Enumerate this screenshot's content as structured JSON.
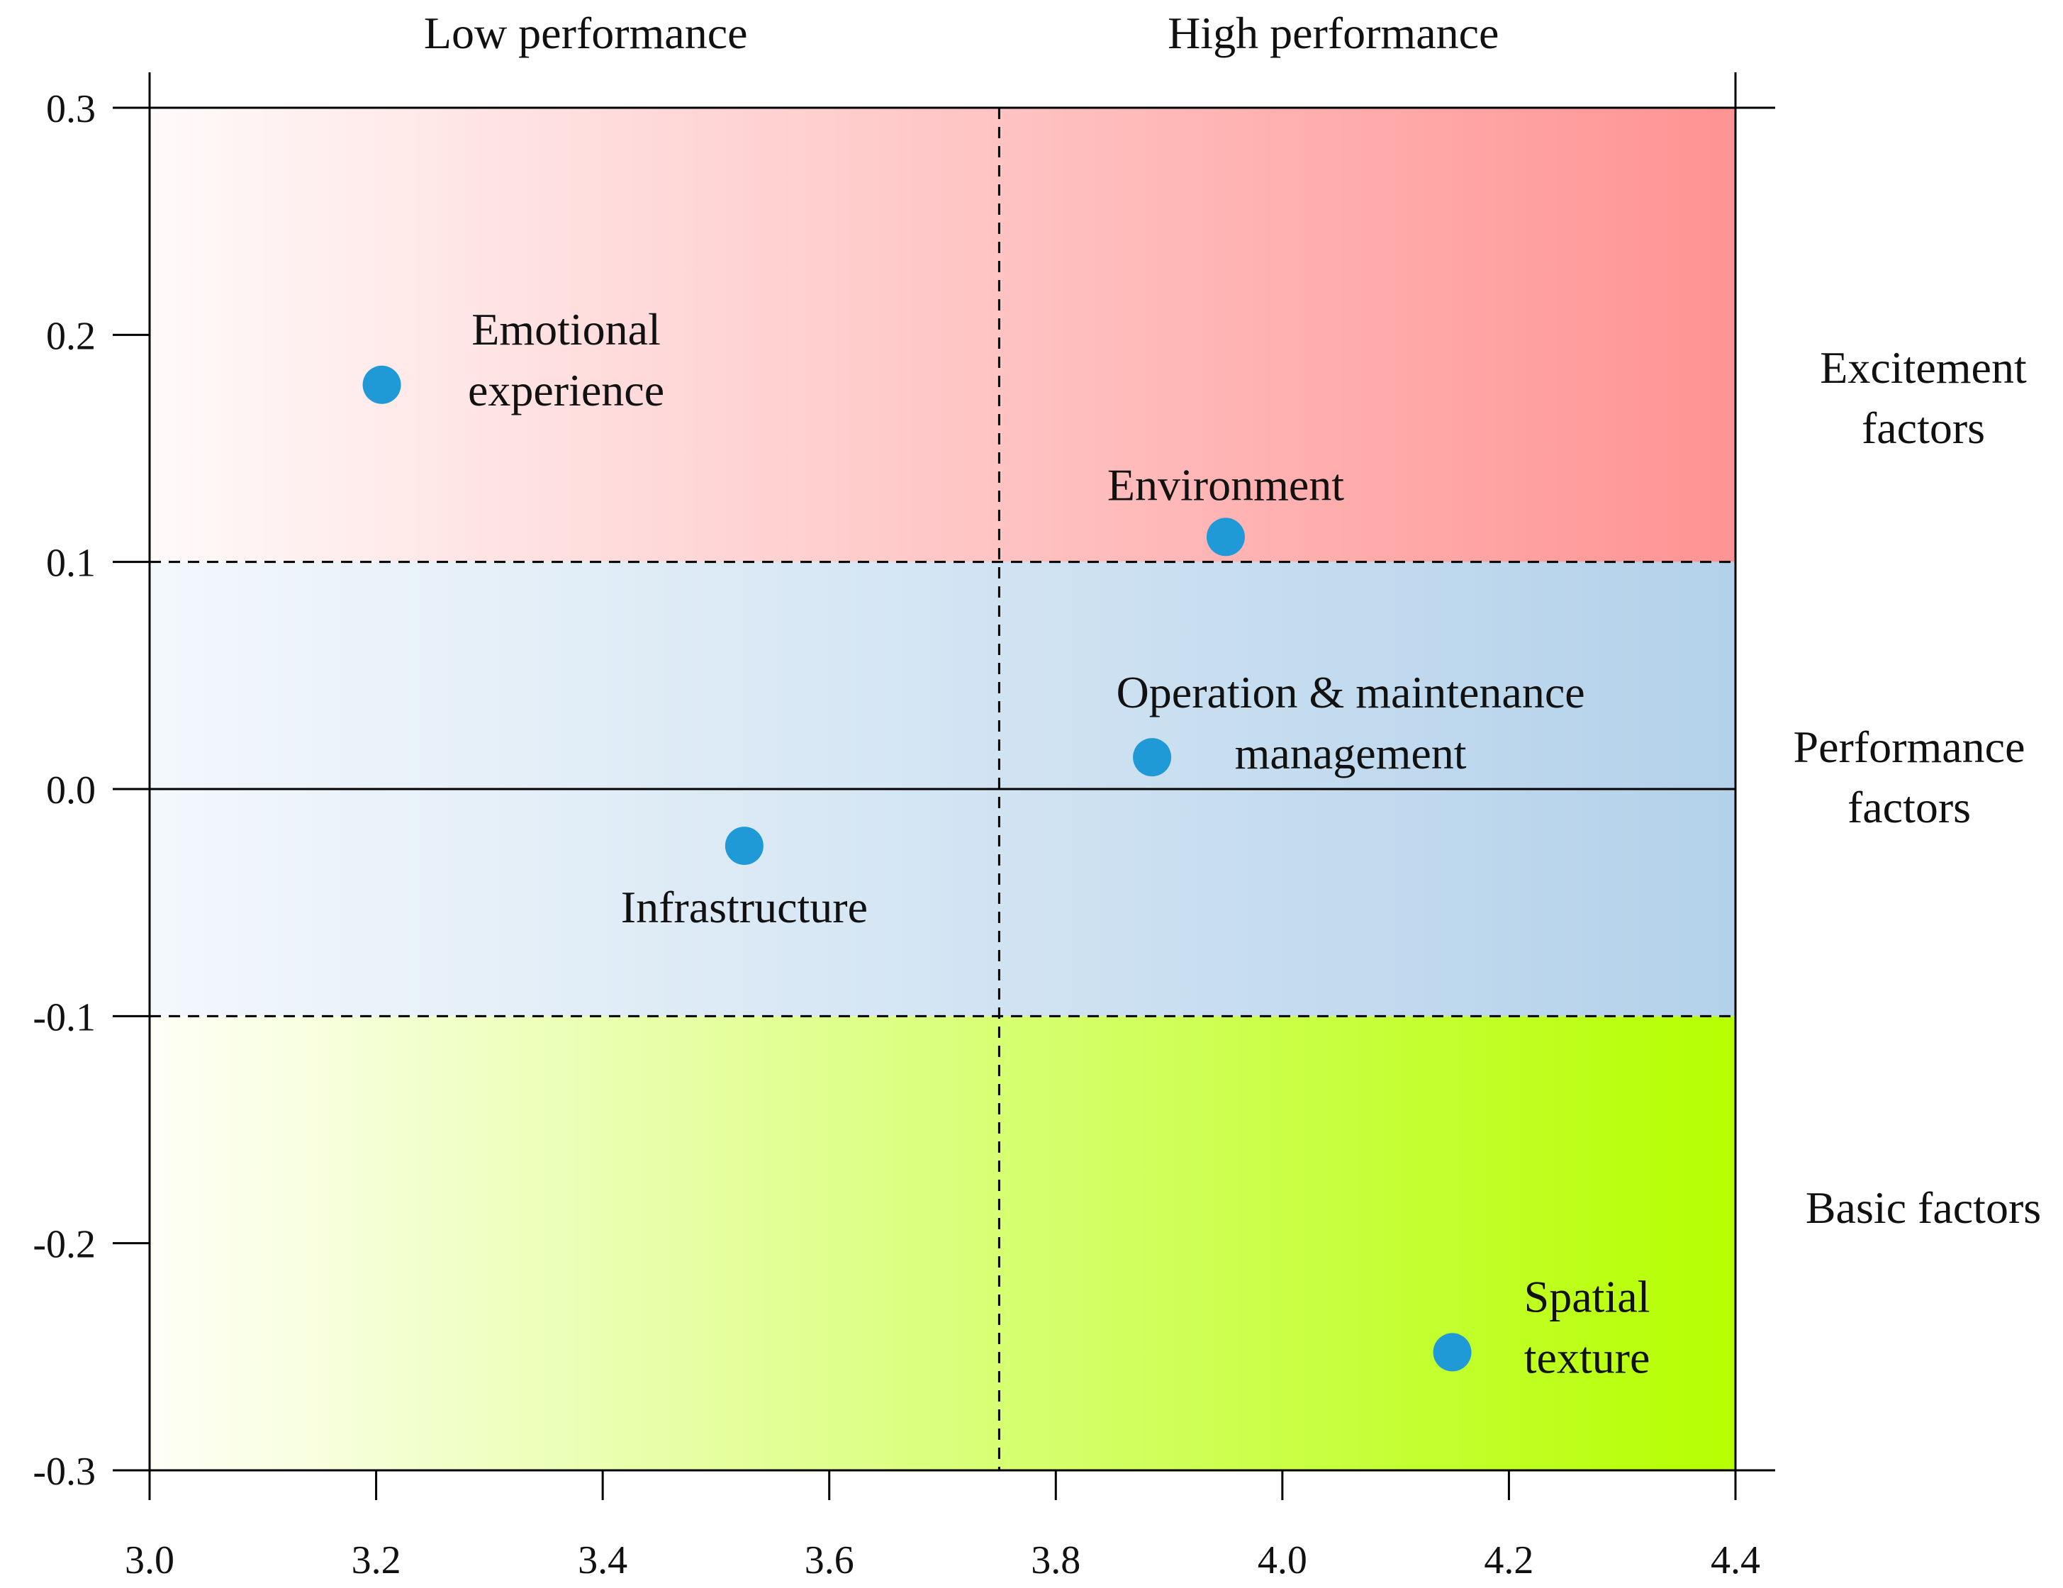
{
  "chart_data": {
    "type": "scatter",
    "title": "",
    "xlabel": "",
    "ylabel": "",
    "xlim": [
      3.0,
      4.4
    ],
    "ylim": [
      -0.3,
      0.3
    ],
    "x_ticks": [
      "3.0",
      "3.2",
      "3.4",
      "3.6",
      "3.8",
      "4.0",
      "4.2",
      "4.4"
    ],
    "y_ticks": [
      "0.3",
      "0.2",
      "0.1",
      "0.0",
      "-0.1",
      "-0.2",
      "-0.3"
    ],
    "x_ticks_values": [
      3.0,
      3.2,
      3.4,
      3.6,
      3.8,
      4.0,
      4.2,
      4.4
    ],
    "y_ticks_values": [
      0.3,
      0.2,
      0.1,
      0.0,
      -0.1,
      -0.2,
      -0.3
    ],
    "performance_divider_x": 3.75,
    "band_boundaries_y": [
      0.1,
      -0.1
    ],
    "column_labels": [
      {
        "label": "Low performance",
        "x_center": 3.385
      },
      {
        "label": "High performance",
        "x_center": 4.045
      }
    ],
    "zones": [
      {
        "name": "Excitement factors",
        "lines": [
          "Excitement",
          "factors"
        ],
        "y_range": [
          0.1,
          0.3
        ],
        "color_from": "#fffafa",
        "color_to": "#ff9393"
      },
      {
        "name": "Performance factors",
        "lines": [
          "Performance",
          "factors"
        ],
        "y_range": [
          -0.1,
          0.1
        ],
        "color_from": "#f3f8fc",
        "color_to": "#b3d1ea"
      },
      {
        "name": "Basic factors",
        "lines": [
          "Basic factors"
        ],
        "y_range": [
          -0.3,
          -0.1
        ],
        "color_from": "#fffff7",
        "color_to": "#b5ff00"
      }
    ],
    "series": [
      {
        "name": "Factors",
        "color": "#1f9ad6",
        "points": [
          {
            "label_lines": [
              "Emotional",
              "experience"
            ],
            "x": 3.205,
            "y": 0.178,
            "label_anchor": "right"
          },
          {
            "label_lines": [
              "Environment"
            ],
            "x": 3.95,
            "y": 0.111,
            "label_anchor": "above"
          },
          {
            "label_lines": [
              "Operation & maintenance",
              "management"
            ],
            "x": 3.885,
            "y": 0.014,
            "label_anchor": "above-right"
          },
          {
            "label_lines": [
              "Infrastructure"
            ],
            "x": 3.525,
            "y": -0.025,
            "label_anchor": "below"
          },
          {
            "label_lines": [
              "Spatial",
              "texture"
            ],
            "x": 4.15,
            "y": -0.248,
            "label_anchor": "right"
          }
        ]
      }
    ]
  }
}
